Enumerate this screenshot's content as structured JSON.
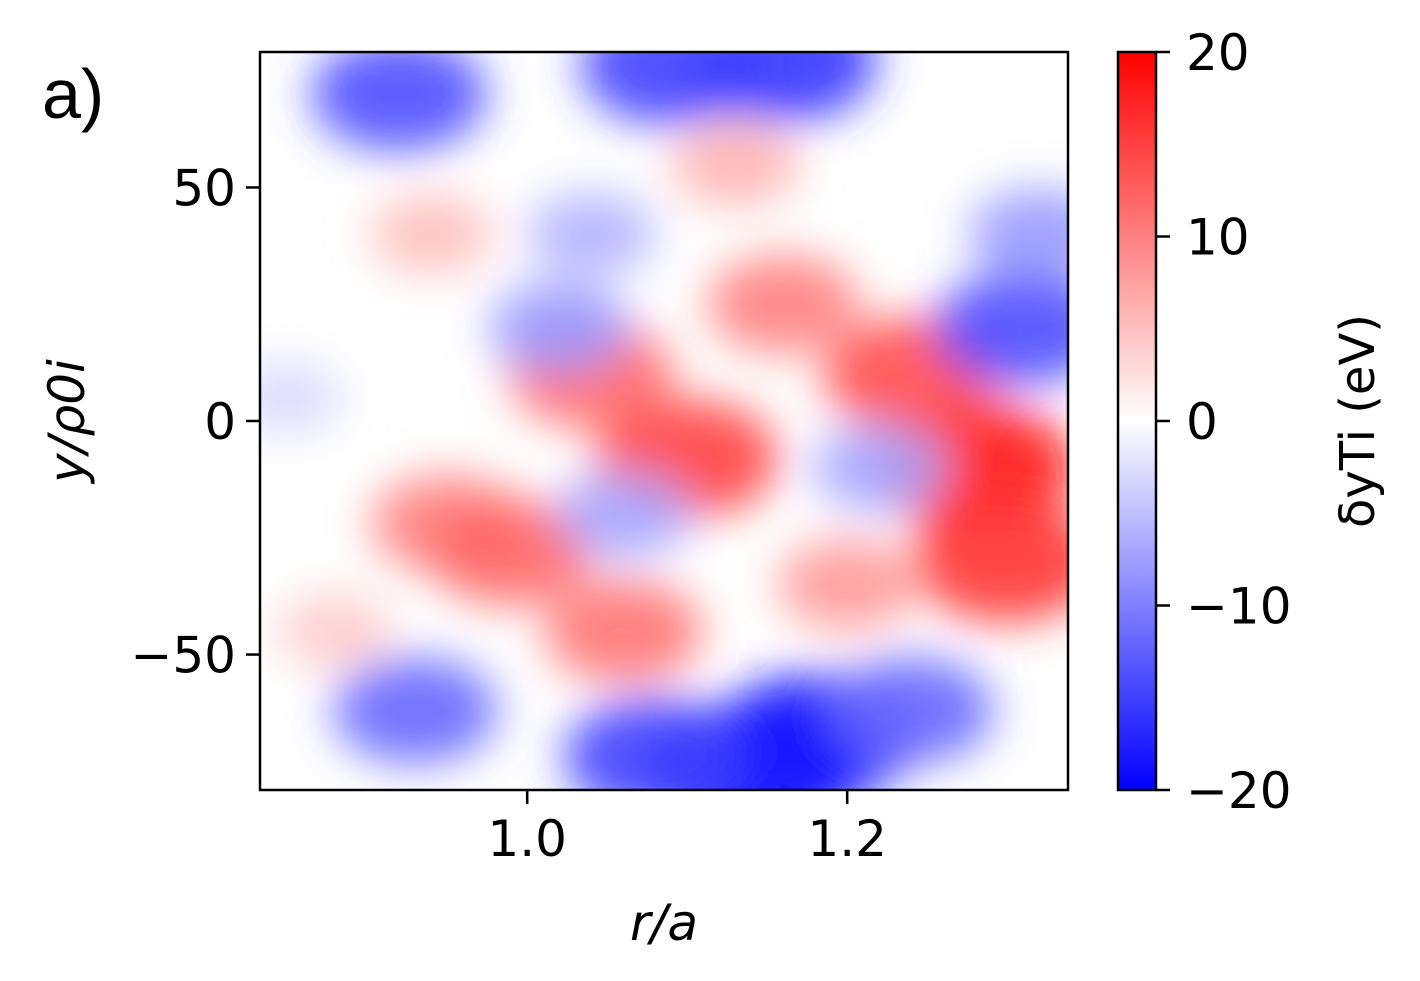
{
  "panel_label": "a)",
  "chart_data": {
    "type": "heatmap",
    "xlabel": "r/a",
    "ylabel": "y/ρ0i",
    "xlim": [
      0.833,
      1.338
    ],
    "ylim": [
      -79,
      79
    ],
    "x_ticks": [
      1.0,
      1.2
    ],
    "x_tick_labels": [
      "1.0",
      "1.2"
    ],
    "y_ticks": [
      50,
      0,
      -50
    ],
    "y_tick_labels": [
      "50",
      "0",
      "−50"
    ],
    "colormap": "bwr",
    "colorbar": {
      "label": "δyTi (eV)",
      "range": [
        -20,
        20
      ],
      "ticks": [
        20,
        10,
        0,
        -10,
        -20
      ],
      "tick_labels": [
        "20",
        "10",
        "0",
        "−10",
        "−20"
      ]
    },
    "features": [
      {
        "x": 1.28,
        "y": -10,
        "value": 18
      },
      {
        "x": 1.24,
        "y": 10,
        "value": 14
      },
      {
        "x": 1.3,
        "y": -30,
        "value": 16
      },
      {
        "x": 1.1,
        "y": -8,
        "value": 15
      },
      {
        "x": 1.16,
        "y": 25,
        "value": 10
      },
      {
        "x": 1.13,
        "y": 55,
        "value": 6
      },
      {
        "x": 1.04,
        "y": 10,
        "value": 12
      },
      {
        "x": 1.06,
        "y": -45,
        "value": 11
      },
      {
        "x": 0.95,
        "y": -22,
        "value": 10
      },
      {
        "x": 0.99,
        "y": -28,
        "value": 12
      },
      {
        "x": 0.94,
        "y": 40,
        "value": 5
      },
      {
        "x": 1.2,
        "y": -35,
        "value": 8
      },
      {
        "x": 1.14,
        "y": -75,
        "value": -20
      },
      {
        "x": 1.18,
        "y": -68,
        "value": -18
      },
      {
        "x": 1.08,
        "y": -72,
        "value": -15
      },
      {
        "x": 1.24,
        "y": -62,
        "value": -12
      },
      {
        "x": 1.16,
        "y": 77,
        "value": -16
      },
      {
        "x": 1.09,
        "y": 76,
        "value": -15
      },
      {
        "x": 1.31,
        "y": 20,
        "value": -14
      },
      {
        "x": 1.32,
        "y": 40,
        "value": -8
      },
      {
        "x": 0.92,
        "y": 70,
        "value": -14
      },
      {
        "x": 1.02,
        "y": 20,
        "value": -8
      },
      {
        "x": 1.06,
        "y": -20,
        "value": -7
      },
      {
        "x": 0.93,
        "y": -62,
        "value": -12
      },
      {
        "x": 1.22,
        "y": -10,
        "value": -7
      },
      {
        "x": 1.04,
        "y": 40,
        "value": -6
      },
      {
        "x": 0.85,
        "y": 5,
        "value": -3
      },
      {
        "x": 0.88,
        "y": -45,
        "value": 4
      }
    ]
  }
}
